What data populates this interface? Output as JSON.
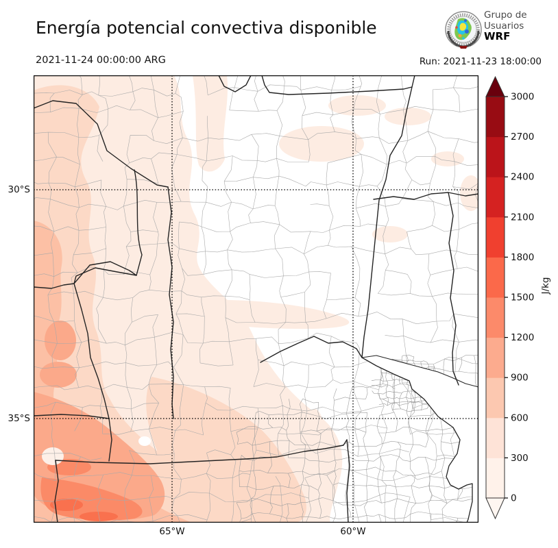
{
  "header": {
    "title": "Energía potencial convectiva disponible",
    "valid_time": "2021-11-24 00:00:00 ARG",
    "run_label": "Run: 2021-11-23 18:00:00"
  },
  "logo": {
    "line1": "Grupo de",
    "line2": "Usuarios",
    "line3": "WRF"
  },
  "axes": {
    "lat": [
      {
        "label": "30°S"
      },
      {
        "label": "35°S"
      }
    ],
    "lon": [
      {
        "label": "65°W"
      },
      {
        "label": "60°W"
      }
    ]
  },
  "colorbar": {
    "unit": "J/kg",
    "ticks": [
      "0",
      "300",
      "600",
      "900",
      "1200",
      "1500",
      "1800",
      "2100",
      "2400",
      "2700",
      "3000"
    ],
    "tick_values": [
      0,
      300,
      600,
      900,
      1200,
      1500,
      1800,
      2100,
      2400,
      2700,
      3000
    ],
    "colors": [
      "#fff2ea",
      "#fee3d7",
      "#fcc8b0",
      "#fcab8e",
      "#fc8a6a",
      "#fb694a",
      "#f0402f",
      "#d52221",
      "#bb141a",
      "#980c13"
    ],
    "over_color": "#69000d",
    "under_color": "#fff6f1",
    "max_value": 3000
  },
  "map_legend": {
    "shade_levels": [
      "#fdece2",
      "#fcd9c6",
      "#fcc0a5",
      "#fba98a",
      "#fb8a67",
      "#f9714e"
    ]
  }
}
